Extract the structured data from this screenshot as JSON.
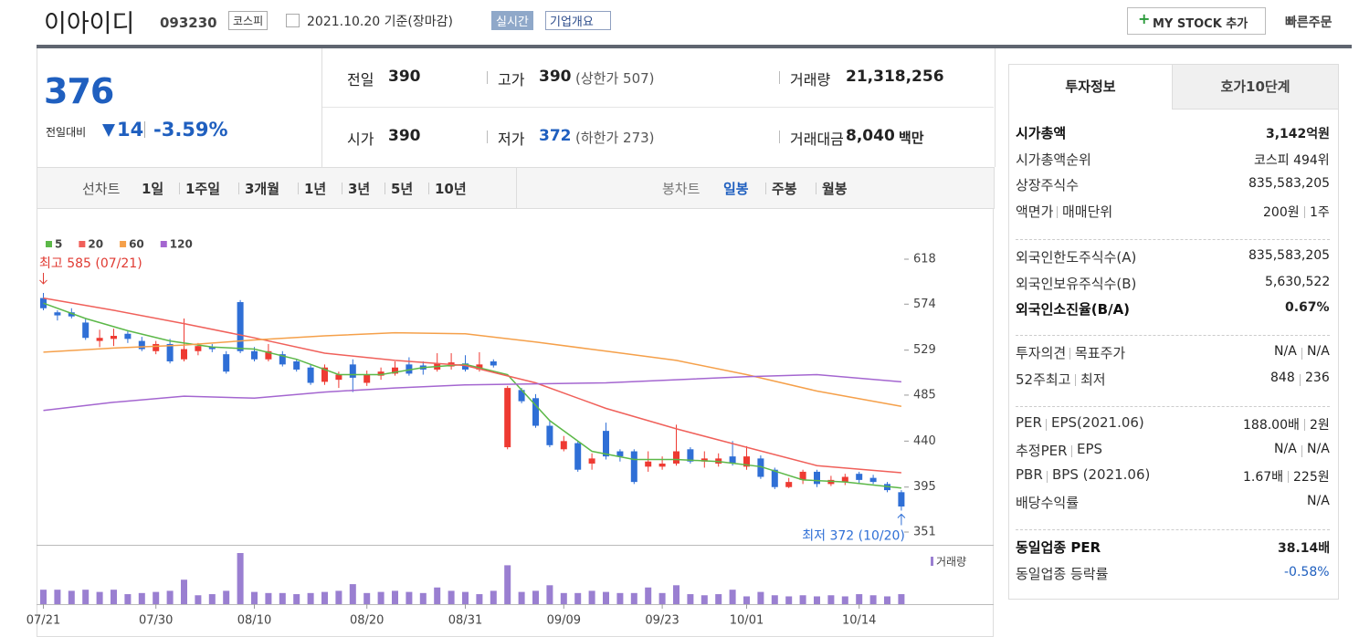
{
  "header": {
    "name": "이아이디",
    "code": "093230",
    "market": "코스피",
    "date": "2021.10.20 기준(장마감)",
    "realtime": "실시간",
    "overview": "기업개요",
    "mystock": "MY STOCK 추가",
    "quick_order": "빠른주문"
  },
  "price": {
    "current": "376",
    "change_label": "전일대비",
    "change": "14",
    "rate": "-3.59%"
  },
  "quote": [
    [
      {
        "label": "전일",
        "value": "390"
      },
      {
        "label": "고가",
        "value": "390",
        "sub": "(상한가 507)"
      },
      {
        "label": "거래량",
        "value": "21,318,256"
      }
    ],
    [
      {
        "label": "시가",
        "value": "390"
      },
      {
        "label": "저가",
        "value": "372",
        "sub": "(하한가 273)"
      },
      {
        "label": "거래대금",
        "value": "8,040",
        "sub": "백만"
      }
    ]
  ],
  "tabs": {
    "line_label": "선차트",
    "line": [
      "1일",
      "1주일",
      "3개월",
      "1년",
      "3년",
      "5년",
      "10년"
    ],
    "candle_label": "봉차트",
    "candle": [
      "일봉",
      "주봉",
      "월봉"
    ]
  },
  "chart_data": {
    "type": "candlestick",
    "up_color": "#ee3a32",
    "down_color": "#2f6fd6",
    "categories": [
      "07/21",
      null,
      null,
      null,
      null,
      null,
      null,
      null,
      "07/30",
      null,
      null,
      null,
      null,
      null,
      null,
      "08/10",
      null,
      null,
      null,
      null,
      null,
      null,
      null,
      "08/20",
      null,
      null,
      null,
      null,
      null,
      null,
      "08/31",
      null,
      null,
      null,
      null,
      null,
      null,
      "09/09",
      null,
      null,
      null,
      null,
      null,
      null,
      "09/23",
      null,
      null,
      null,
      null,
      null,
      "10/01",
      null,
      null,
      null,
      null,
      null,
      null,
      null,
      "10/14",
      null,
      null,
      null
    ],
    "open": [
      580,
      566,
      566,
      556,
      538,
      540,
      545,
      538,
      528,
      535,
      520,
      528,
      532,
      525,
      576,
      528,
      520,
      525,
      518,
      512,
      498,
      500,
      515,
      497,
      504,
      506,
      515,
      514,
      510,
      513,
      516,
      510,
      518,
      434,
      490,
      482,
      455,
      432,
      438,
      418,
      450,
      430,
      430,
      415,
      415,
      418,
      432,
      420,
      418,
      425,
      415,
      423,
      412,
      395,
      402,
      410,
      398,
      400,
      408,
      404,
      398,
      390
    ],
    "high": [
      585,
      568,
      570,
      560,
      549,
      550,
      548,
      542,
      538,
      540,
      560,
      536,
      535,
      528,
      578,
      532,
      535,
      528,
      520,
      515,
      515,
      508,
      520,
      509,
      512,
      518,
      522,
      518,
      526,
      526,
      524,
      527,
      520,
      494,
      492,
      486,
      460,
      445,
      440,
      428,
      458,
      432,
      432,
      430,
      425,
      456,
      434,
      430,
      428,
      440,
      435,
      426,
      414,
      404,
      412,
      412,
      406,
      408,
      410,
      407,
      400,
      392
    ],
    "low": [
      568,
      558,
      560,
      539,
      532,
      533,
      536,
      528,
      525,
      516,
      518,
      524,
      527,
      506,
      526,
      518,
      518,
      513,
      508,
      495,
      495,
      492,
      488,
      494,
      500,
      504,
      504,
      505,
      508,
      510,
      508,
      508,
      512,
      432,
      477,
      453,
      434,
      430,
      410,
      412,
      422,
      420,
      398,
      410,
      412,
      416,
      418,
      414,
      415,
      416,
      412,
      403,
      393,
      394,
      398,
      395,
      396,
      397,
      399,
      398,
      390,
      372
    ],
    "close": [
      570,
      563,
      562,
      541,
      541,
      543,
      540,
      530,
      535,
      518,
      530,
      533,
      530,
      508,
      528,
      520,
      528,
      515,
      510,
      497,
      512,
      505,
      502,
      505,
      508,
      512,
      506,
      510,
      516,
      517,
      510,
      515,
      514,
      492,
      479,
      455,
      436,
      440,
      412,
      423,
      425,
      425,
      400,
      420,
      418,
      430,
      420,
      423,
      423,
      418,
      425,
      405,
      395,
      400,
      410,
      398,
      402,
      405,
      402,
      400,
      392,
      376
    ],
    "volume": {
      "name": "거래량",
      "color": "#9a7fd1",
      "values": [
        1.3,
        1.3,
        1.2,
        1.3,
        1.1,
        1.3,
        0.9,
        1.0,
        1.1,
        1.2,
        2.2,
        0.8,
        0.9,
        1.2,
        4.6,
        1.1,
        1.0,
        1.0,
        0.9,
        1.0,
        1.1,
        1.2,
        1.8,
        1.0,
        1.1,
        1.2,
        1.1,
        1.0,
        1.5,
        1.2,
        1.1,
        0.9,
        1.2,
        3.5,
        1.1,
        1.2,
        1.7,
        1.0,
        1.0,
        1.2,
        1.1,
        1.0,
        1.0,
        1.5,
        1.0,
        1.7,
        0.9,
        0.8,
        0.9,
        1.3,
        0.7,
        1.1,
        0.8,
        0.7,
        0.8,
        0.7,
        0.8,
        0.7,
        0.9,
        0.8,
        0.7,
        0.9
      ]
    },
    "series": [
      {
        "name": "5",
        "color": "#5cb848",
        "x": [
          0,
          3,
          6,
          9,
          12,
          15,
          18,
          21,
          24,
          27,
          30,
          33,
          36,
          39,
          42,
          45,
          48,
          51,
          54,
          57,
          61
        ],
        "values": [
          575,
          560,
          548,
          538,
          532,
          530,
          520,
          505,
          505,
          512,
          515,
          505,
          460,
          430,
          422,
          422,
          420,
          415,
          402,
          400,
          394
        ]
      },
      {
        "name": "20",
        "color": "#f0605a",
        "x": [
          0,
          5,
          10,
          15,
          20,
          25,
          30,
          35,
          40,
          45,
          50,
          55,
          61
        ],
        "values": [
          580,
          568,
          555,
          541,
          526,
          519,
          514,
          497,
          472,
          452,
          434,
          416,
          409
        ]
      },
      {
        "name": "60",
        "color": "#f5a04a",
        "x": [
          0,
          5,
          10,
          15,
          20,
          25,
          30,
          35,
          40,
          45,
          50,
          55,
          61
        ],
        "values": [
          527,
          531,
          534,
          539,
          543,
          546,
          545,
          537,
          528,
          519,
          505,
          489,
          474
        ]
      },
      {
        "name": "120",
        "color": "#a466d0",
        "x": [
          0,
          5,
          10,
          15,
          20,
          25,
          30,
          35,
          40,
          45,
          50,
          55,
          61
        ],
        "values": [
          470,
          478,
          484,
          482,
          488,
          492,
          495,
          496,
          497,
          500,
          503,
          505,
          498
        ]
      }
    ],
    "ylim": [
      351,
      618
    ],
    "yticks": [
      618,
      574,
      529,
      485,
      440,
      395,
      351
    ],
    "annotations": [
      "최고 585 (07/21)",
      "최저 372 (10/20)"
    ]
  },
  "info": {
    "tabs": [
      "투자정보",
      "호가10단계"
    ],
    "groups": [
      {
        "rows": [
          {
            "labels": [
              "시가총액"
            ],
            "values": [
              "3,142억원"
            ]
          },
          {
            "labels": [
              "시가총액순위"
            ],
            "values": [
              "코스피 494위"
            ]
          },
          {
            "labels": [
              "상장주식수"
            ],
            "values": [
              "835,583,205"
            ]
          },
          {
            "labels": [
              "액면가",
              "매매단위"
            ],
            "values": [
              "200원",
              "1주"
            ]
          }
        ]
      },
      {
        "rows": [
          {
            "labels": [
              "외국인한도주식수(A)"
            ],
            "values": [
              "835,583,205"
            ]
          },
          {
            "labels": [
              "외국인보유주식수(B)"
            ],
            "values": [
              "5,630,522"
            ]
          },
          {
            "labels": [
              "외국인소진율(B/A)"
            ],
            "values": [
              "0.67%"
            ]
          }
        ]
      },
      {
        "rows": [
          {
            "labels": [
              "투자의견",
              "목표주가"
            ],
            "values": [
              "N/A",
              "N/A"
            ]
          },
          {
            "labels": [
              "52주최고",
              "최저"
            ],
            "values": [
              "848",
              "236"
            ]
          }
        ]
      },
      {
        "rows": [
          {
            "labels": [
              "PER",
              "EPS(2021.06)"
            ],
            "values": [
              "188.00배",
              "2원"
            ]
          },
          {
            "labels": [
              "추정PER",
              "EPS"
            ],
            "values": [
              "N/A",
              "N/A"
            ]
          },
          {
            "labels": [
              "PBR",
              "BPS (2021.06)"
            ],
            "values": [
              "1.67배",
              "225원"
            ]
          },
          {
            "labels": [
              "배당수익률"
            ],
            "values": [
              "N/A"
            ]
          }
        ]
      },
      {
        "rows": [
          {
            "labels": [
              "동일업종 PER"
            ],
            "values": [
              "38.14배"
            ]
          },
          {
            "labels": [
              "동일업종 등락률"
            ],
            "values": [
              "-0.58%"
            ]
          }
        ]
      }
    ]
  }
}
